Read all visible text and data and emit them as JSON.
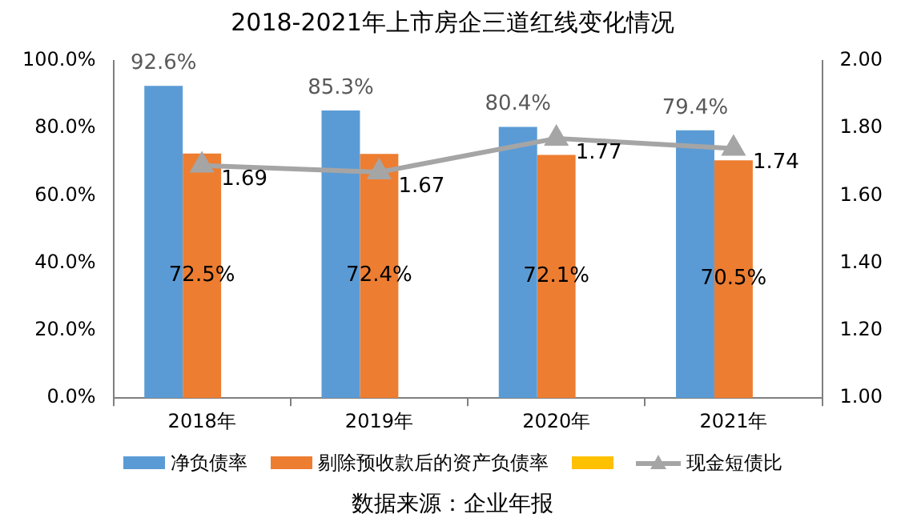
{
  "chart_data": {
    "type": "bar",
    "title": "2018-2021年上市房企三道红线变化情况",
    "categories": [
      "2018年",
      "2019年",
      "2020年",
      "2021年"
    ],
    "series": [
      {
        "name": "净负债率",
        "color": "#5b9bd5",
        "values": [
          92.6,
          85.3,
          80.4,
          79.4
        ],
        "value_labels": [
          "92.6%",
          "85.3%",
          "80.4%",
          "79.4%"
        ]
      },
      {
        "name": "剔除预收款后的资产负债率",
        "color": "#ed7d31",
        "values": [
          72.5,
          72.4,
          72.1,
          70.5
        ],
        "value_labels": [
          "72.5%",
          "72.4%",
          "72.1%",
          "70.5%"
        ]
      },
      {
        "color": "#ffc000",
        "values": [
          null,
          null,
          null,
          null
        ]
      },
      {
        "name": "现金短债比",
        "type": "line",
        "axis": "y2",
        "color": "#a5a5a5",
        "marker": "triangle",
        "values": [
          1.69,
          1.67,
          1.77,
          1.74
        ],
        "value_labels": [
          "1.69",
          "1.67",
          "1.77",
          "1.74"
        ]
      }
    ],
    "ylim": [
      0,
      100
    ],
    "yticks": [
      {
        "value": 0,
        "label": "0.0%"
      },
      {
        "value": 20,
        "label": "20.0%"
      },
      {
        "value": 40,
        "label": "40.0%"
      },
      {
        "value": 60,
        "label": "60.0%"
      },
      {
        "value": 80,
        "label": "80.0%"
      },
      {
        "value": 100,
        "label": "100.0%"
      }
    ],
    "y2lim": [
      1,
      2
    ],
    "y2ticks": [
      {
        "value": 1,
        "label": "1.00"
      },
      {
        "value": 1.2,
        "label": "1.20"
      },
      {
        "value": 1.4,
        "label": "1.40"
      },
      {
        "value": 1.6,
        "label": "1.60"
      },
      {
        "value": 1.8,
        "label": "1.80"
      },
      {
        "value": 2,
        "label": "2.00"
      }
    ],
    "grid": false,
    "legend": "bottom",
    "annotations": [
      "数据来源：企业年报"
    ]
  }
}
